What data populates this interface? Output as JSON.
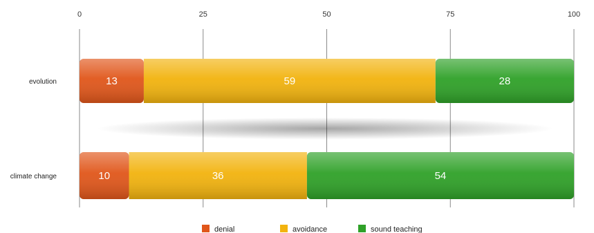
{
  "chart_data": {
    "type": "bar",
    "orientation": "horizontal",
    "stacked": true,
    "title": "",
    "xlabel": "",
    "ylabel": "",
    "xlim": [
      0,
      100
    ],
    "x_ticks": [
      "0",
      "25",
      "50",
      "75",
      "100"
    ],
    "categories": [
      "evolution",
      "climate change"
    ],
    "series": [
      {
        "name": "denial",
        "color": "#e0561a",
        "values": [
          13,
          10
        ]
      },
      {
        "name": "avoidance",
        "color": "#f2b30e",
        "values": [
          59,
          36
        ]
      },
      {
        "name": "sound teaching",
        "color": "#2fa128",
        "values": [
          28,
          54
        ]
      }
    ],
    "grid": true,
    "legend_position": "bottom"
  }
}
